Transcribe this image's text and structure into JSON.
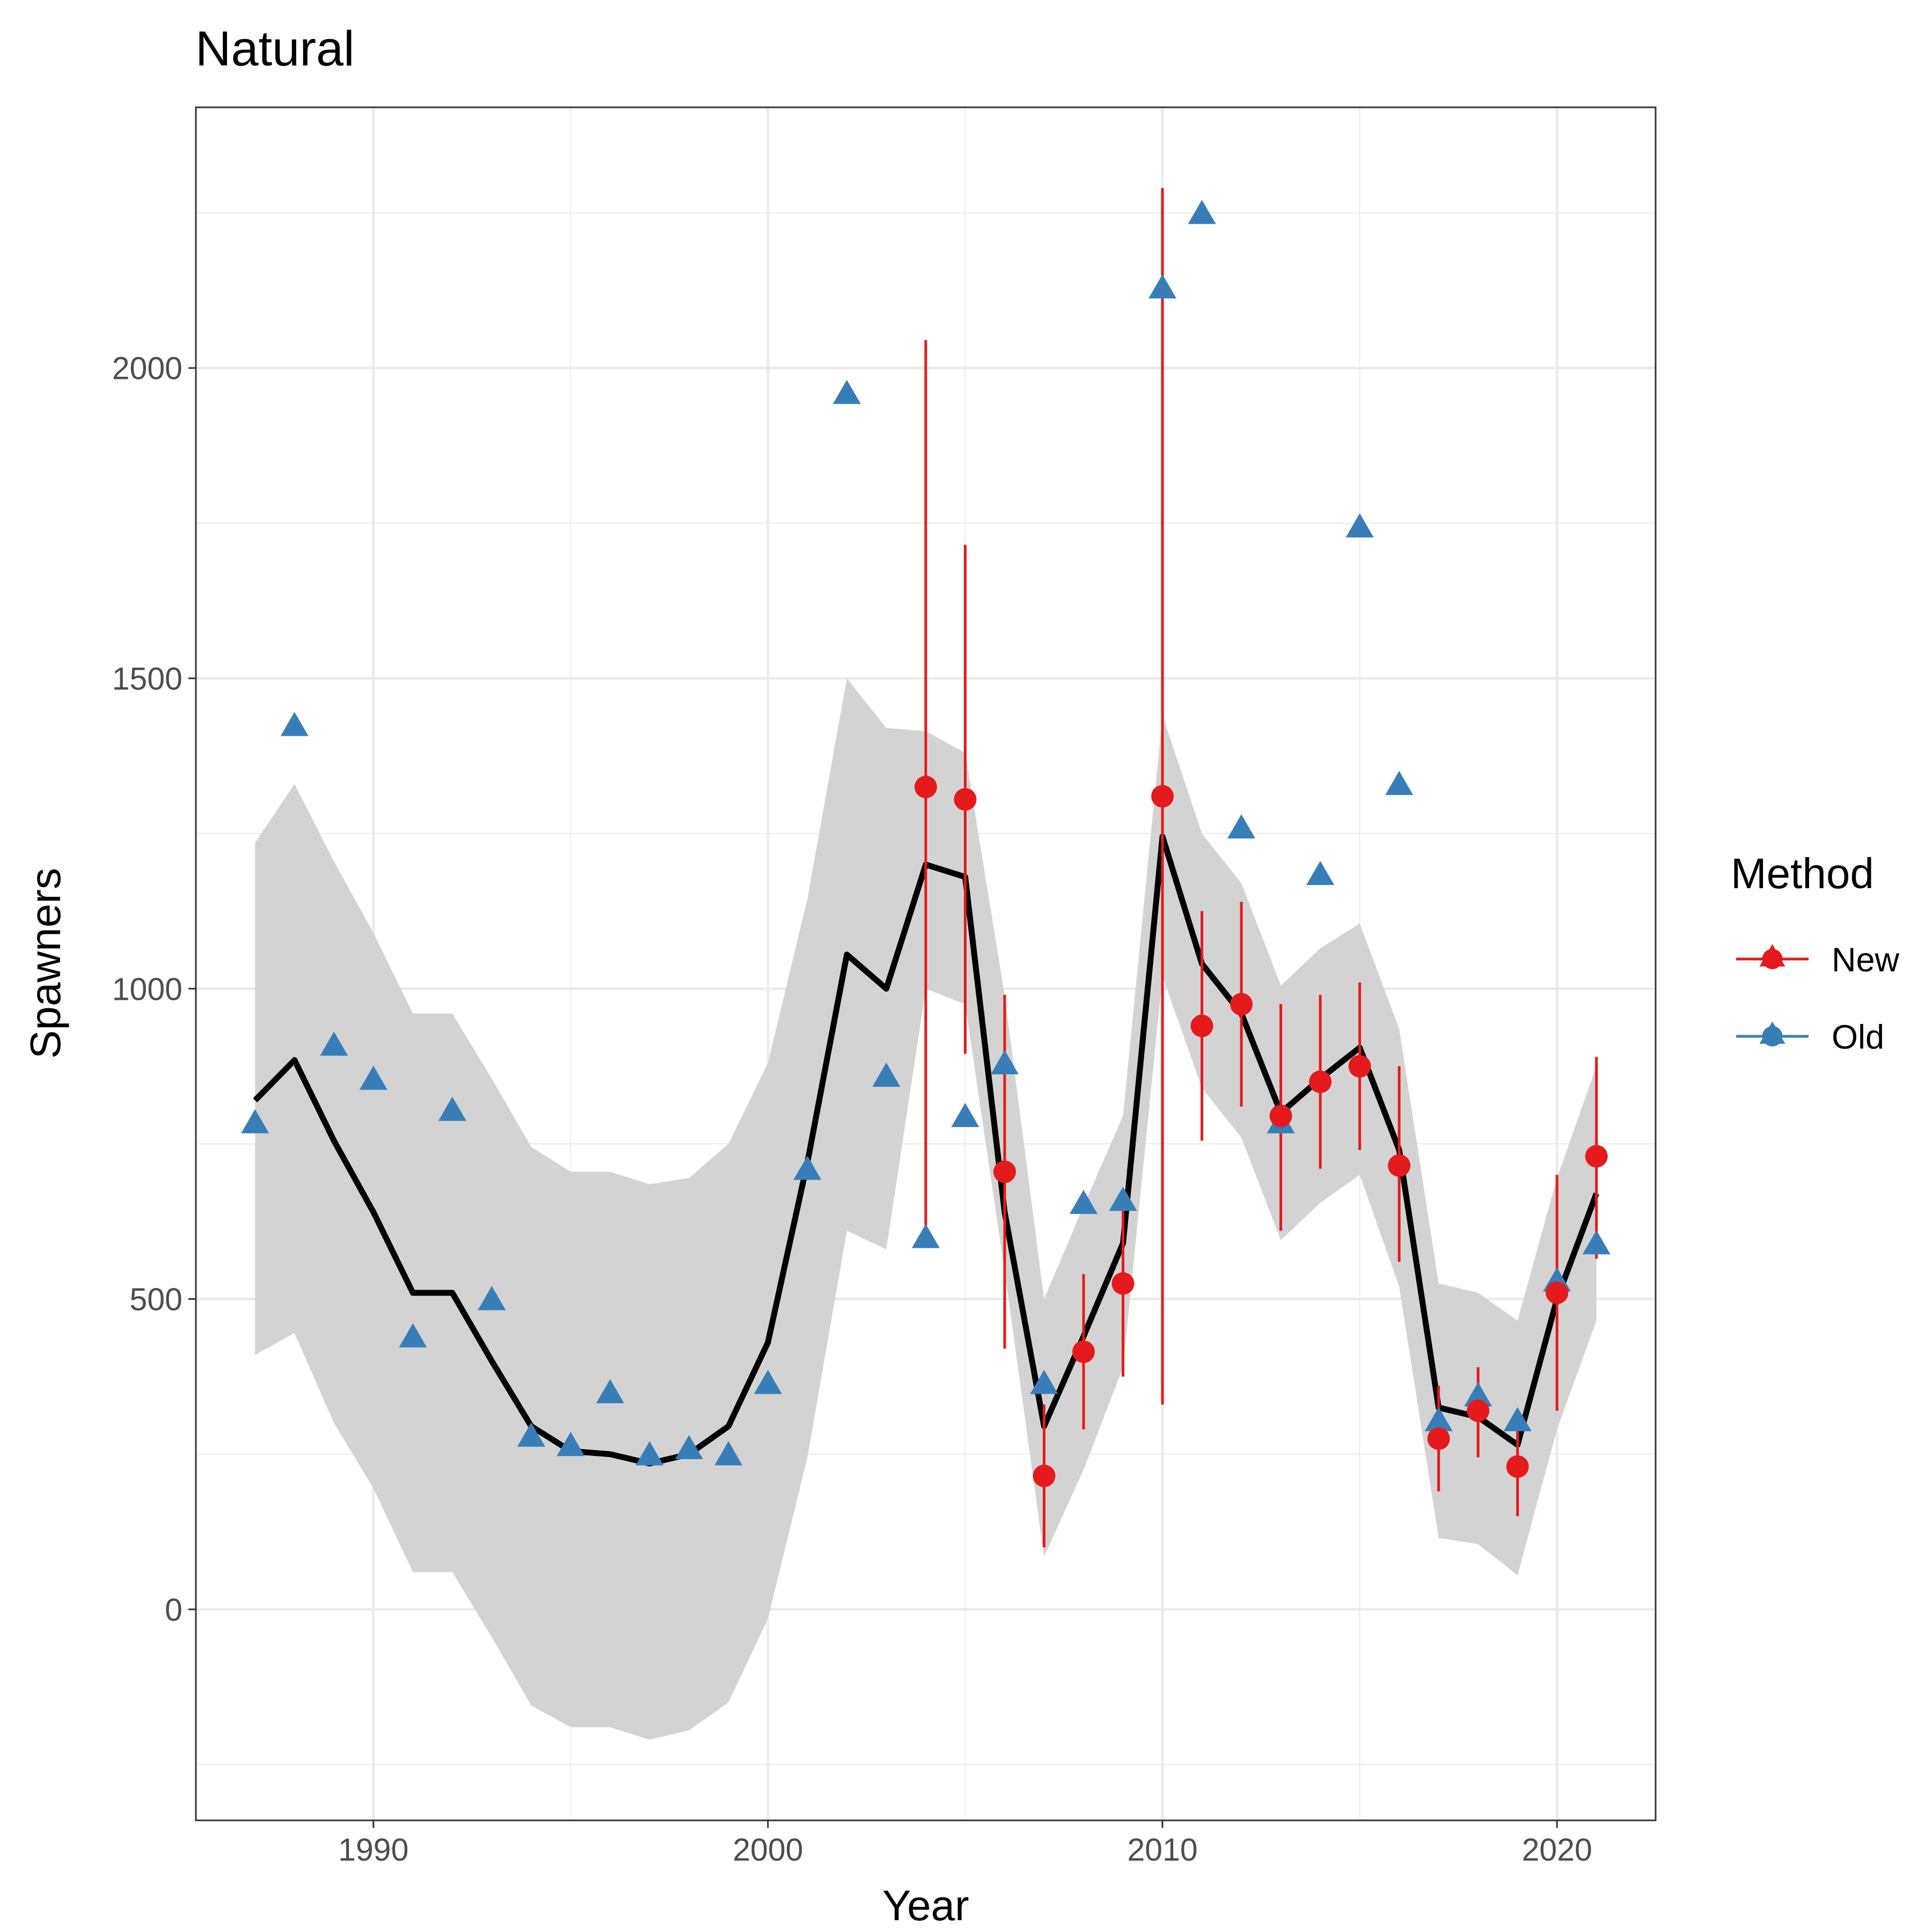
{
  "chart_data": {
    "type": "line",
    "title": "Natural",
    "xlabel": "Year",
    "ylabel": "Spawners",
    "xlim": [
      1985.5,
      2022.5
    ],
    "ylim": [
      -340,
      2420
    ],
    "x_ticks": [
      1990,
      2000,
      2010,
      2020
    ],
    "x_tick_labels": [
      "1990",
      "2000",
      "2010",
      "2020"
    ],
    "y_ticks": [
      0,
      500,
      1000,
      1500,
      2000
    ],
    "y_tick_labels": [
      "0",
      "500",
      "1000",
      "1500",
      "2000"
    ],
    "grid": true,
    "legend": {
      "title": "Method",
      "position": "right",
      "entries": [
        {
          "label": "New",
          "color": "#e41a1c",
          "shape": "circle"
        },
        {
          "label": "Old",
          "color": "#377eb8",
          "shape": "triangle"
        }
      ]
    },
    "fit": {
      "color": "#000000",
      "band_color": "#d3d3d3",
      "x": [
        1987,
        1988,
        1989,
        1990,
        1991,
        1992,
        1993,
        1994,
        1995,
        1996,
        1997,
        1998,
        1999,
        2000,
        2001,
        2002,
        2003,
        2004,
        2005,
        2006,
        2007,
        2008,
        2009,
        2010,
        2011,
        2012,
        2013,
        2014,
        2015,
        2016,
        2017,
        2018,
        2019,
        2020,
        2021
      ],
      "y": [
        820,
        885,
        755,
        640,
        510,
        510,
        400,
        295,
        255,
        250,
        235,
        250,
        295,
        430,
        720,
        1055,
        1000,
        1200,
        1180,
        640,
        295,
        440,
        590,
        1245,
        1040,
        960,
        800,
        855,
        905,
        740,
        325,
        310,
        265,
        500,
        670
      ],
      "lower": [
        410,
        445,
        300,
        195,
        60,
        60,
        -45,
        -155,
        -190,
        -190,
        -210,
        -195,
        -150,
        -15,
        245,
        610,
        580,
        1000,
        975,
        545,
        85,
        225,
        390,
        1020,
        840,
        760,
        595,
        655,
        700,
        520,
        115,
        105,
        55,
        290,
        465
      ],
      "upper": [
        1235,
        1330,
        1205,
        1090,
        960,
        960,
        855,
        745,
        705,
        705,
        685,
        695,
        750,
        880,
        1145,
        1500,
        1420,
        1415,
        1380,
        990,
        500,
        650,
        795,
        1440,
        1250,
        1170,
        1005,
        1065,
        1105,
        935,
        525,
        510,
        465,
        695,
        875
      ]
    },
    "series": [
      {
        "name": "New",
        "color": "#e41a1c",
        "x": [
          2004,
          2005,
          2006,
          2007,
          2008,
          2009,
          2010,
          2011,
          2012,
          2013,
          2014,
          2015,
          2016,
          2017,
          2018,
          2019,
          2020,
          2021
        ],
        "y": [
          1325,
          1305,
          705,
          215,
          415,
          525,
          1310,
          940,
          975,
          795,
          850,
          875,
          715,
          275,
          320,
          230,
          510,
          730
        ],
        "lower": [
          605,
          895,
          420,
          100,
          290,
          375,
          330,
          755,
          810,
          610,
          710,
          740,
          560,
          190,
          245,
          150,
          320,
          565
        ],
        "upper": [
          2045,
          1715,
          990,
          330,
          540,
          675,
          2290,
          1125,
          1140,
          975,
          990,
          1010,
          875,
          360,
          390,
          310,
          700,
          890
        ]
      },
      {
        "name": "Old",
        "color": "#377eb8",
        "x": [
          1987,
          1988,
          1989,
          1990,
          1991,
          1992,
          1993,
          1994,
          1995,
          1996,
          1997,
          1998,
          1999,
          2000,
          2001,
          2002,
          2003,
          2004,
          2005,
          2006,
          2007,
          2008,
          2009,
          2010,
          2011,
          2012,
          2013,
          2014,
          2015,
          2016,
          2017,
          2018,
          2019,
          2020,
          2021
        ],
        "y": [
          780,
          1420,
          905,
          850,
          435,
          800,
          495,
          275,
          260,
          345,
          245,
          255,
          245,
          360,
          705,
          1955,
          855,
          595,
          790,
          875,
          360,
          650,
          655,
          2125,
          2245,
          1255,
          780,
          1180,
          1740,
          1325,
          300,
          340,
          300,
          525,
          585
        ]
      }
    ]
  }
}
